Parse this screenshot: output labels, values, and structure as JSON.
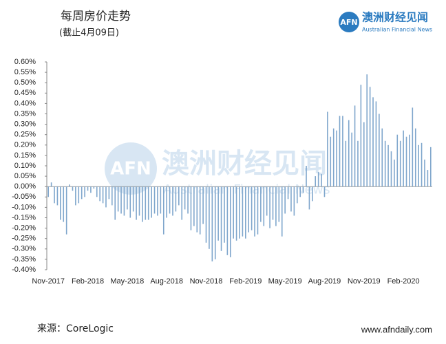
{
  "chart_data": {
    "type": "bar",
    "title": "每周房价走势",
    "subtitle": "(截止4月09日)",
    "logo": {
      "mark": "AFN",
      "name": "澳洲财经见闻",
      "tagline": "Australian Financial News"
    },
    "source": "来源：CoreLogic",
    "website": "www.afndaily.com",
    "color": "#7fa6cc",
    "categories": [
      "Nov-2017",
      null,
      null,
      null,
      null,
      null,
      null,
      null,
      null,
      null,
      null,
      null,
      null,
      "Feb-2018",
      null,
      null,
      null,
      null,
      null,
      null,
      null,
      null,
      null,
      null,
      null,
      null,
      "May-2018",
      null,
      null,
      null,
      null,
      null,
      null,
      null,
      null,
      null,
      null,
      null,
      null,
      "Aug-2018",
      null,
      null,
      null,
      null,
      null,
      null,
      null,
      null,
      null,
      null,
      null,
      null,
      "Nov-2018",
      null,
      null,
      null,
      null,
      null,
      null,
      null,
      null,
      null,
      null,
      null,
      null,
      "Feb-2019",
      null,
      null,
      null,
      null,
      null,
      null,
      null,
      null,
      null,
      null,
      null,
      null,
      "May-2019",
      null,
      null,
      null,
      null,
      null,
      null,
      null,
      null,
      null,
      null,
      null,
      null,
      "Aug-2019",
      null,
      null,
      null,
      null,
      null,
      null,
      null,
      null,
      null,
      null,
      null,
      null,
      "Nov-2019",
      null,
      null,
      null,
      null,
      null,
      null,
      null,
      null,
      null,
      null,
      null,
      null,
      "Feb-2020",
      null,
      null,
      null,
      null,
      null,
      null,
      null,
      null,
      null
    ],
    "values": [
      -0.05,
      0.02,
      -0.08,
      -0.09,
      -0.16,
      -0.17,
      -0.23,
      0.01,
      -0.02,
      -0.09,
      -0.08,
      -0.06,
      -0.05,
      -0.02,
      -0.03,
      -0.01,
      -0.05,
      -0.07,
      -0.08,
      -0.1,
      -0.06,
      -0.09,
      -0.16,
      -0.12,
      -0.13,
      -0.14,
      -0.11,
      -0.15,
      -0.12,
      -0.16,
      -0.14,
      -0.17,
      -0.16,
      -0.16,
      -0.15,
      -0.13,
      -0.14,
      -0.13,
      -0.23,
      -0.15,
      -0.13,
      -0.14,
      -0.12,
      -0.09,
      -0.16,
      -0.11,
      -0.13,
      -0.21,
      -0.19,
      -0.22,
      -0.23,
      -0.18,
      -0.27,
      -0.3,
      -0.36,
      -0.35,
      -0.26,
      -0.31,
      -0.27,
      -0.33,
      -0.34,
      -0.25,
      -0.26,
      -0.25,
      -0.24,
      -0.25,
      -0.22,
      -0.21,
      -0.24,
      -0.23,
      -0.17,
      -0.19,
      -0.14,
      -0.2,
      -0.16,
      -0.19,
      -0.17,
      -0.24,
      -0.13,
      -0.06,
      -0.12,
      -0.14,
      -0.08,
      -0.05,
      -0.03,
      0.1,
      -0.11,
      -0.07,
      0.05,
      0.07,
      0.06,
      -0.05,
      0.36,
      0.24,
      0.28,
      0.27,
      0.34,
      0.34,
      0.22,
      0.32,
      0.26,
      0.39,
      0.22,
      0.49,
      0.31,
      0.54,
      0.48,
      0.43,
      0.41,
      0.35,
      0.28,
      0.22,
      0.2,
      0.17,
      0.13,
      0.25,
      0.22,
      0.27,
      0.24,
      0.25,
      0.38,
      0.28,
      0.2,
      0.21,
      0.13,
      0.08,
      0.19
    ],
    "ylim": [
      -0.4,
      0.6
    ],
    "yticks": [
      {
        "value": 0.6,
        "label": "0.60%"
      },
      {
        "value": 0.55,
        "label": "0.55%"
      },
      {
        "value": 0.5,
        "label": "0.50%"
      },
      {
        "value": 0.45,
        "label": "0.45%"
      },
      {
        "value": 0.4,
        "label": "0.40%"
      },
      {
        "value": 0.35,
        "label": "0.35%"
      },
      {
        "value": 0.3,
        "label": "0.30%"
      },
      {
        "value": 0.25,
        "label": "0.25%"
      },
      {
        "value": 0.2,
        "label": "0.20%"
      },
      {
        "value": 0.15,
        "label": "0.15%"
      },
      {
        "value": 0.1,
        "label": "0.10%"
      },
      {
        "value": 0.05,
        "label": "0.05%"
      },
      {
        "value": 0,
        "label": "0.00%"
      },
      {
        "value": -0.05,
        "label": "-0.05%"
      },
      {
        "value": -0.1,
        "label": "-0.10%"
      },
      {
        "value": -0.15,
        "label": "-0.15%"
      },
      {
        "value": -0.2,
        "label": "-0.20%"
      },
      {
        "value": -0.25,
        "label": "-0.25%"
      },
      {
        "value": -0.3,
        "label": "-0.30%"
      },
      {
        "value": -0.35,
        "label": "-0.35%"
      },
      {
        "value": -0.4,
        "label": "-0.40%"
      }
    ],
    "grid": false
  }
}
